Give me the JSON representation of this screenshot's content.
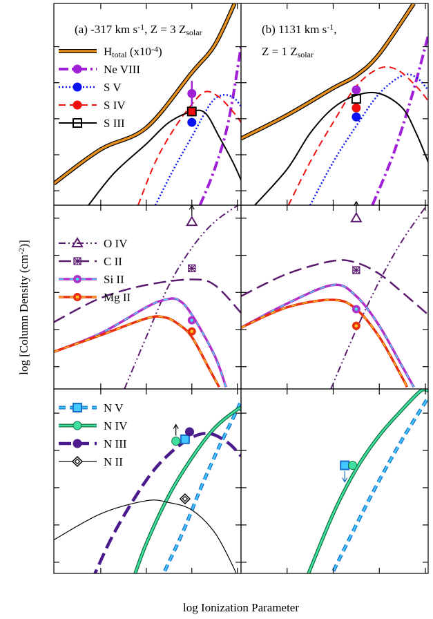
{
  "figure": {
    "ylabel": [
      "log [Column Density (cm",
      {
        "sup": "-2"
      },
      ")]"
    ],
    "xlabel": "log Ionization Parameter"
  },
  "chart_data": [
    {
      "type": "line",
      "title": [
        [
          "(a) -317 km s",
          {
            "sup": "-1"
          },
          ", Z = 3 Z",
          {
            "sub": "solar"
          }
        ]
      ],
      "xlim": [
        -5.03,
        -0.92
      ],
      "ylim": [
        10.6,
        16.2
      ],
      "xticks": [
        -4,
        -3,
        -2,
        -1
      ],
      "yticks": [
        11,
        12,
        13,
        14,
        15
      ],
      "legend": "upper left",
      "series": [
        {
          "name": [
            "H",
            {
              "sub": "total"
            },
            " (x10",
            {
              "sup": "-4"
            },
            ")"
          ],
          "color": "#e8901e",
          "outline": "#000000",
          "width": 3.5,
          "dash": "solid",
          "x": [
            -5.03,
            -4,
            -3,
            -2,
            -1.5,
            -1.06
          ],
          "values": [
            11.2,
            12.15,
            12.75,
            14.28,
            15.04,
            16.2
          ]
        },
        {
          "name": "Ne VIII",
          "color": "#a020d8",
          "width": 4,
          "dash": "dashdot",
          "marker": "circle",
          "x": [
            -1.82,
            -1.5,
            -1.2,
            -0.92
          ],
          "values": [
            10.6,
            11.6,
            12.9,
            15.0
          ],
          "point_x": -2,
          "point_y": 13.7,
          "point_err": 0.35
        },
        {
          "name": "S V",
          "color": "#0a14f0",
          "width": 2.5,
          "dash": "dotted",
          "marker": "circle",
          "x": [
            -2.8,
            -2.4,
            -2,
            -1.6,
            -1.35,
            -1.1,
            -0.92
          ],
          "values": [
            10.6,
            11.6,
            12.5,
            13.4,
            13.65,
            13.6,
            13.35
          ],
          "point_x": -2,
          "point_y": 12.9
        },
        {
          "name": "S IV",
          "color": "#f01010",
          "width": 2,
          "dash": "dashed",
          "marker": "circle",
          "x": [
            -3.18,
            -2.8,
            -2.4,
            -2,
            -1.7,
            -1.4,
            -1.1,
            -0.92
          ],
          "values": [
            10.6,
            11.8,
            12.7,
            13.4,
            13.75,
            13.6,
            13.2,
            12.9
          ],
          "point_x": -2,
          "point_y": 13.2
        },
        {
          "name": "S III",
          "color": "#000000",
          "width": 2,
          "dash": "solid",
          "marker": "open-square",
          "x": [
            -4.27,
            -3.7,
            -3,
            -2.5,
            -2,
            -1.7,
            -1.4,
            -1.1,
            -0.92
          ],
          "values": [
            10.6,
            11.5,
            12.3,
            12.9,
            13.2,
            13.15,
            12.5,
            11.8,
            11.3
          ],
          "point_x": -2,
          "point_y": 13.2
        }
      ]
    },
    {
      "type": "line",
      "title": [
        [
          "(b) 1131 km s",
          {
            "sup": "-1"
          },
          ","
        ],
        [
          "Z = 1 Z",
          {
            "sub": "solar"
          }
        ]
      ],
      "xlim": [
        -5.0,
        -0.94
      ],
      "ylim": [
        10.6,
        16.2
      ],
      "xticks": [
        -4,
        -3,
        -2,
        -1
      ],
      "yticks": [
        11,
        12,
        13,
        14,
        15
      ],
      "series": [
        {
          "color": "#e8901e",
          "outline": "#000000",
          "width": 3.5,
          "dash": "solid",
          "x": [
            -5,
            -4,
            -3,
            -2.5,
            -2,
            -1.25
          ],
          "values": [
            12.45,
            13.1,
            13.85,
            14.2,
            14.8,
            16.2
          ]
        },
        {
          "color": "#a020d8",
          "width": 4,
          "dash": "dashdot",
          "marker": "circle",
          "x": [
            -2.15,
            -1.7,
            -1.3,
            -0.94
          ],
          "values": [
            10.6,
            12.0,
            13.6,
            15.3
          ],
          "point_x": -2.5,
          "point_y": 13.8
        },
        {
          "color": "#0a14f0",
          "width": 2.5,
          "dash": "dotted",
          "marker": "circle",
          "x": [
            -3.5,
            -3,
            -2.5,
            -2,
            -1.5,
            -1.2,
            -0.94
          ],
          "values": [
            10.6,
            11.8,
            12.8,
            13.7,
            14.2,
            14.15,
            13.8
          ],
          "point_x": -2.5,
          "point_y": 13.05
        },
        {
          "color": "#f01010",
          "width": 2,
          "dash": "dashed",
          "marker": "circle",
          "x": [
            -3.97,
            -3.5,
            -3,
            -2.5,
            -2,
            -1.6,
            -1.2,
            -0.94
          ],
          "values": [
            10.6,
            11.8,
            12.9,
            13.9,
            14.4,
            14.35,
            13.9,
            13.5
          ],
          "point_x": -2.5,
          "point_y": 13.3
        },
        {
          "color": "#000000",
          "width": 2,
          "dash": "solid",
          "marker": "open-square",
          "x": [
            -4.7,
            -4,
            -3.5,
            -3,
            -2.5,
            -2,
            -1.5,
            -1.2,
            -0.94
          ],
          "values": [
            10.6,
            11.6,
            12.6,
            13.3,
            13.65,
            13.7,
            13.3,
            12.6,
            11.8
          ],
          "point_x": -2.5,
          "point_y": 13.55
        }
      ]
    },
    {
      "type": "line",
      "xlim": [
        -5.03,
        -0.92
      ],
      "ylim": [
        10.4,
        15.35
      ],
      "xticks": [
        -4,
        -3,
        -2,
        -1
      ],
      "yticks": [
        11,
        12,
        13,
        14,
        15
      ],
      "legend": "upper left",
      "series": [
        {
          "name": "O IV",
          "color": "#5a1a6e",
          "width": 2,
          "dash": "dashdotdot",
          "marker": "open-triangle",
          "x": [
            -3.48,
            -3,
            -2.5,
            -2,
            -1.5,
            -0.92
          ],
          "values": [
            10.4,
            11.8,
            13.2,
            14.2,
            14.9,
            15.4
          ],
          "point_x": -2,
          "point_y": 14.9,
          "limit": "up"
        },
        {
          "name": "C II",
          "color": "#5a1a6e",
          "width": 2.5,
          "dash": "longdash",
          "marker": "boxed-x",
          "x": [
            -5.03,
            -4,
            -3,
            -2,
            -1.5,
            -0.92
          ],
          "values": [
            12.2,
            12.85,
            13.2,
            13.35,
            13.2,
            12.45
          ],
          "point_x": -2,
          "point_y": 13.65
        },
        {
          "name": "Si II",
          "color": "#b030c8",
          "inner": "#40e0f0",
          "width": 3.5,
          "dash": "solid",
          "marker": "dot-circle",
          "x": [
            -5.03,
            -4,
            -3,
            -2.6,
            -2.3,
            -2,
            -1.5,
            -1.25
          ],
          "values": [
            11.4,
            11.9,
            12.6,
            12.8,
            12.8,
            12.4,
            11.3,
            10.45
          ],
          "point_x": -2,
          "point_y": 12.25
        },
        {
          "name": "Mg II",
          "color": "#e83010",
          "inner": "#ffc820",
          "width": 3.5,
          "dash": "solid",
          "marker": "dot-circle",
          "x": [
            -5.03,
            -4,
            -3,
            -2.6,
            -2.3,
            -2,
            -1.6,
            -1.4
          ],
          "values": [
            11.4,
            11.85,
            12.3,
            12.33,
            12.15,
            11.8,
            10.9,
            10.45
          ],
          "point_x": -2,
          "point_y": 11.95
        }
      ]
    },
    {
      "type": "line",
      "xlim": [
        -5.0,
        -0.94
      ],
      "ylim": [
        10.4,
        15.35
      ],
      "xticks": [
        -4,
        -3,
        -2,
        -1
      ],
      "yticks": [
        11,
        12,
        13,
        14,
        15
      ],
      "series": [
        {
          "color": "#5a1a6e",
          "width": 2,
          "dash": "dashdotdot",
          "marker": "open-triangle",
          "x": [
            -3.05,
            -2.5,
            -2,
            -1.5,
            -0.94
          ],
          "values": [
            10.4,
            12.0,
            13.3,
            14.4,
            15.4
          ],
          "point_x": -2.5,
          "point_y": 15.0,
          "limit": "up"
        },
        {
          "color": "#5a1a6e",
          "width": 2.5,
          "dash": "longdash",
          "marker": "boxed-x",
          "x": [
            -5,
            -4,
            -3,
            -2.5,
            -2,
            -1.5,
            -0.94
          ],
          "values": [
            12.9,
            13.5,
            13.85,
            13.8,
            13.5,
            13.0,
            12.4
          ],
          "point_x": -2.5,
          "point_y": 13.6
        },
        {
          "color": "#b030c8",
          "inner": "#40e0f0",
          "width": 3.5,
          "dash": "solid",
          "marker": "dot-circle",
          "x": [
            -5,
            -4,
            -3,
            -2.5,
            -2,
            -1.5,
            -1.25
          ],
          "values": [
            12.05,
            12.7,
            13.2,
            12.9,
            12.1,
            11.0,
            10.45
          ],
          "point_x": -2.5,
          "point_y": 12.55
        },
        {
          "color": "#e83010",
          "inner": "#ffc820",
          "width": 3.5,
          "dash": "solid",
          "marker": "dot-circle",
          "x": [
            -5,
            -4,
            -3,
            -2.5,
            -2,
            -1.5,
            -1.4
          ],
          "values": [
            12.05,
            12.6,
            12.8,
            12.55,
            11.8,
            10.7,
            10.45
          ],
          "point_x": -2.5,
          "point_y": 12.1
        }
      ]
    },
    {
      "type": "line",
      "xlim": [
        -5.03,
        -0.92
      ],
      "ylim": [
        10.7,
        15.65
      ],
      "xticks": [
        -4,
        -3,
        -2,
        -1
      ],
      "yticks": [
        11,
        12,
        13,
        14,
        15
      ],
      "legend": "upper left",
      "series": [
        {
          "name": "N V",
          "color": "#40c8ff",
          "outline": "#1a6cc8",
          "width": 2.5,
          "dash": "dashed",
          "marker": "square",
          "x": [
            -2.7,
            -2.2,
            -1.8,
            -1.4,
            -1,
            -0.92
          ],
          "values": [
            10.5,
            11.8,
            13.0,
            14.1,
            15.1,
            15.35
          ],
          "point_x": -2.15,
          "point_y": 14.3
        },
        {
          "name": "N IV",
          "color": "#40e0a0",
          "outline": "#107040",
          "width": 2.5,
          "dash": "solid",
          "marker": "circle",
          "x": [
            -3.3,
            -3,
            -2.5,
            -2,
            -1.5,
            -1,
            -0.92
          ],
          "values": [
            10.5,
            11.5,
            12.8,
            13.8,
            14.6,
            15.1,
            15.1
          ],
          "point_x": -2.35,
          "point_y": 14.25,
          "limit": "up"
        },
        {
          "name": "N III",
          "color": "#4b1a8c",
          "width": 4.5,
          "dash": "longdash",
          "marker": "circle",
          "x": [
            -4.2,
            -3.7,
            -3,
            -2.5,
            -2,
            -1.6,
            -1.2,
            -0.92
          ],
          "values": [
            10.5,
            11.8,
            13.2,
            13.9,
            14.35,
            14.45,
            14.2,
            13.85
          ],
          "point_x": -2.05,
          "point_y": 14.5
        },
        {
          "name": "N II",
          "color": "#000000",
          "width": 1.2,
          "dash": "solid",
          "marker": "dotted-diamond",
          "x": [
            -5.03,
            -4,
            -3,
            -2.5,
            -2,
            -1.5,
            -1.1,
            -0.97
          ],
          "values": [
            11.6,
            12.3,
            12.65,
            12.6,
            12.4,
            11.8,
            10.9,
            10.5
          ],
          "point_x": -2.15,
          "point_y": 12.7
        }
      ]
    },
    {
      "type": "line",
      "xlim": [
        -5.0,
        -0.94
      ],
      "ylim": [
        10.7,
        15.65
      ],
      "xticks": [
        -4,
        -3,
        -2,
        -1
      ],
      "yticks": [
        11,
        12,
        13,
        14,
        15
      ],
      "series": [
        {
          "color": "#40c8ff",
          "outline": "#1a6cc8",
          "width": 2.5,
          "dash": "dashed",
          "marker": "square",
          "x": [
            -3.1,
            -2.5,
            -2,
            -1.5,
            -1,
            -0.94
          ],
          "values": [
            10.5,
            12.0,
            13.2,
            14.3,
            15.3,
            15.45
          ],
          "point_x": -2.75,
          "point_y": 13.6,
          "limit": "down"
        },
        {
          "color": "#40e0a0",
          "outline": "#107040",
          "width": 2.5,
          "dash": "solid",
          "marker": "circle",
          "x": [
            -3.6,
            -3,
            -2.5,
            -2,
            -1.5,
            -1.1,
            -0.94
          ],
          "values": [
            10.5,
            12.3,
            13.5,
            14.4,
            15.1,
            15.6,
            15.6
          ],
          "point_x": -2.58,
          "point_y": 13.6
        }
      ]
    }
  ]
}
